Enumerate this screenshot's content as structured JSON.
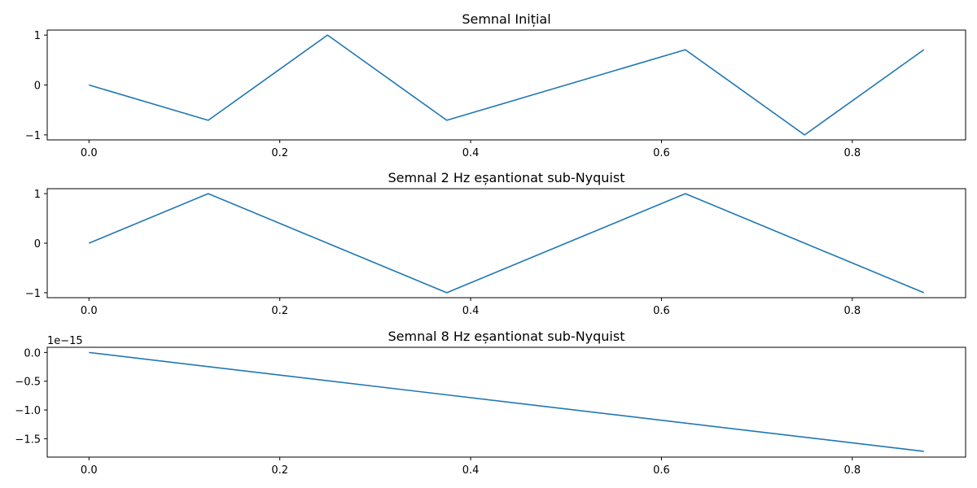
{
  "colors": {
    "line": "#1f77b4",
    "axes": "#000000",
    "background": "#ffffff"
  },
  "chart_data": [
    {
      "type": "line",
      "title": "Semnal Inițial",
      "xlabel": "",
      "ylabel": "",
      "grid": false,
      "xlim": [
        -0.04375,
        0.91875
      ],
      "ylim": [
        -1.1,
        1.1
      ],
      "x_ticks": [
        0.0,
        0.2,
        0.4,
        0.6,
        0.8
      ],
      "x_tick_labels": [
        "0.0",
        "0.2",
        "0.4",
        "0.6",
        "0.8"
      ],
      "y_ticks": [
        -1,
        0,
        1
      ],
      "y_tick_labels": [
        "−1",
        "0",
        "1"
      ],
      "y_offset_label": "",
      "x": [
        0.0,
        0.125,
        0.25,
        0.375,
        0.5,
        0.625,
        0.75,
        0.875
      ],
      "series": [
        {
          "values": [
            0.0,
            -0.7071,
            1.0,
            -0.7071,
            0.0,
            0.7071,
            -1.0,
            0.7071
          ]
        }
      ]
    },
    {
      "type": "line",
      "title": "Semnal 2 Hz eșantionat sub-Nyquist",
      "xlabel": "",
      "ylabel": "",
      "grid": false,
      "xlim": [
        -0.04375,
        0.91875
      ],
      "ylim": [
        -1.1,
        1.1
      ],
      "x_ticks": [
        0.0,
        0.2,
        0.4,
        0.6,
        0.8
      ],
      "x_tick_labels": [
        "0.0",
        "0.2",
        "0.4",
        "0.6",
        "0.8"
      ],
      "y_ticks": [
        -1,
        0,
        1
      ],
      "y_tick_labels": [
        "−1",
        "0",
        "1"
      ],
      "y_offset_label": "",
      "x": [
        0.0,
        0.125,
        0.25,
        0.375,
        0.5,
        0.625,
        0.75,
        0.875
      ],
      "series": [
        {
          "values": [
            0.0,
            1.0,
            0.0,
            -1.0,
            0.0,
            1.0,
            0.0,
            -1.0
          ]
        }
      ]
    },
    {
      "type": "line",
      "title": "Semnal 8 Hz eșantionat sub-Nyquist",
      "xlabel": "",
      "ylabel": "",
      "grid": false,
      "xlim": [
        -0.04375,
        0.91875
      ],
      "ylim": [
        -1.82e-15,
        9e-17
      ],
      "x_ticks": [
        0.0,
        0.2,
        0.4,
        0.6,
        0.8
      ],
      "x_tick_labels": [
        "0.0",
        "0.2",
        "0.4",
        "0.6",
        "0.8"
      ],
      "y_ticks": [
        0.0,
        -5e-16,
        -1e-15,
        -1.5e-15
      ],
      "y_tick_labels": [
        "0.0",
        "−0.5",
        "−1.0",
        "−1.5"
      ],
      "y_offset_label": "1e−15",
      "x": [
        0.0,
        0.875
      ],
      "series": [
        {
          "values": [
            0.0,
            -1.72e-15
          ]
        }
      ]
    }
  ]
}
